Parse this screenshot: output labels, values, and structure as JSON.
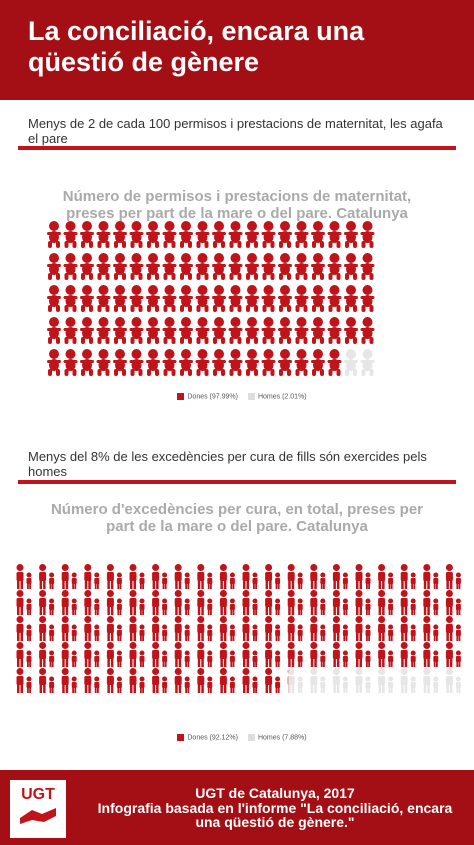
{
  "header": {
    "title": "La conciliació, encara una qüestió de gènere"
  },
  "sections": [
    {
      "text": "Menys de 2 de cada 100 permisos i prestacions de maternitat,  les agafa el pare"
    },
    {
      "text": "Menys del 8% de les excedències per cura de fills són exercides pels homes"
    }
  ],
  "chart_data": [
    {
      "type": "pictogram",
      "title": "Número de permisos i prestacions de maternitat, preses per part de la mare o del pare. Catalunya",
      "series": [
        {
          "name": "Dones (97.99%)",
          "color": "#c0141b",
          "values": [
            97.99
          ]
        },
        {
          "name": "Homes (2.01%)",
          "color": "#e6e6e6",
          "values": [
            2.01
          ]
        }
      ]
    },
    {
      "type": "pictogram",
      "title": "Número d'excedències per cura, en total, preses per part de la mare o del pare. Catalunya",
      "series": [
        {
          "name": "Dones (92.12%)",
          "color": "#c0141b",
          "values": [
            92.12
          ]
        },
        {
          "name": "Homes (7.88%)",
          "color": "#e6e6e6",
          "values": [
            7.88
          ]
        }
      ]
    }
  ],
  "footer": {
    "logo": "UGT",
    "line1": "UGT de Catalunya, 2017",
    "line2": "Infografia basada en l'informe \"La conciliació, encara una qüestió de gènere.\""
  }
}
